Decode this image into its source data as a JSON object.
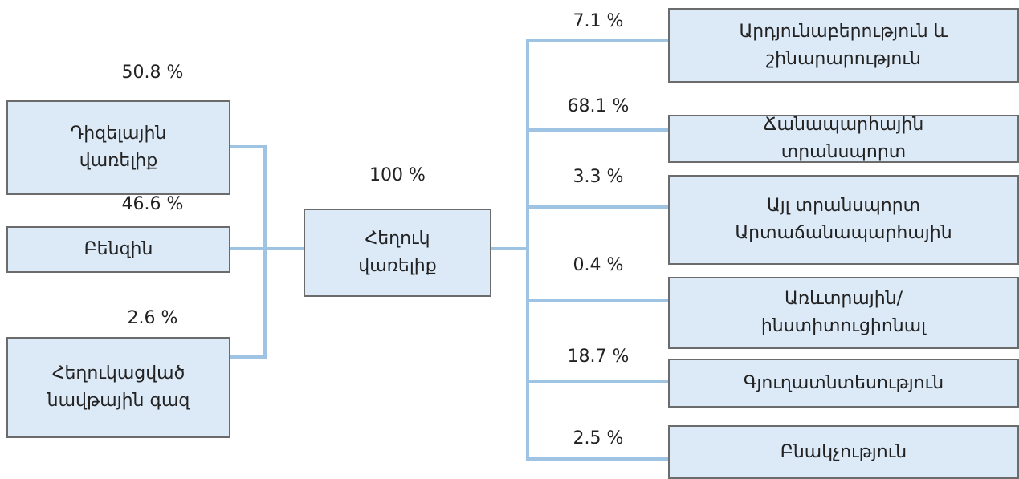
{
  "source": {
    "label": [
      "Դիզելային",
      "վառելիք"
    ],
    "share": "50.8 %"
  },
  "sources": [
    {
      "label": [
        "Դիզելային",
        "վառելիք"
      ],
      "share": "50.8 %"
    },
    {
      "label": [
        "Բենզին"
      ],
      "share": "46.6 %"
    },
    {
      "label": [
        "Հեղուկացված",
        "նավթային գազ"
      ],
      "share": "2.6 %"
    }
  ],
  "center": {
    "label": [
      "Հեղուկ",
      "վառելիք"
    ],
    "share": "100 %"
  },
  "uses": [
    {
      "label": [
        "Արդյունաբերություն և",
        "շինարարություն"
      ],
      "share": "7.1 %"
    },
    {
      "label": [
        "Ճանապարհային",
        "տրանսպորտ"
      ],
      "share": "68.1 %"
    },
    {
      "label": [
        "Այլ տրանսպորտ",
        "Արտաճանապարհային"
      ],
      "share": "3.3 %"
    },
    {
      "label": [
        "Առևտրային/",
        "ինստիտուցիոնալ"
      ],
      "share": "0.4 %"
    },
    {
      "label": [
        "Գյուղատնտեսություն"
      ],
      "share": "18.7 %"
    },
    {
      "label": [
        "Բնակչություն"
      ],
      "share": "2.5 %"
    }
  ]
}
